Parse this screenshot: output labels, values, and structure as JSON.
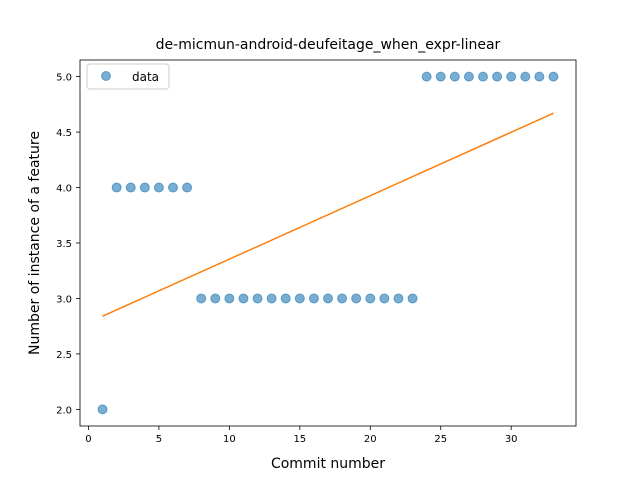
{
  "chart_data": {
    "type": "scatter",
    "title": "de-micmun-android-deufeitage_when_expr-linear",
    "xlabel": "Commit number",
    "ylabel": "Number of instance of a feature",
    "xlim": [
      -0.6,
      34.6
    ],
    "ylim": [
      1.85,
      5.15
    ],
    "xticks": [
      0,
      5,
      10,
      15,
      20,
      25,
      30
    ],
    "yticks": [
      2.0,
      2.5,
      3.0,
      3.5,
      4.0,
      4.5,
      5.0
    ],
    "xtick_labels": [
      "0",
      "5",
      "10",
      "15",
      "20",
      "25",
      "30"
    ],
    "ytick_labels": [
      "2.0",
      "2.5",
      "3.0",
      "3.5",
      "4.0",
      "4.5",
      "5.0"
    ],
    "grid": false,
    "legend": {
      "position": "top-left",
      "entries": [
        "data"
      ]
    },
    "series": [
      {
        "name": "data",
        "kind": "scatter",
        "color": "#1f77b4",
        "x": [
          1,
          2,
          3,
          4,
          5,
          6,
          7,
          8,
          9,
          10,
          11,
          12,
          13,
          14,
          15,
          16,
          17,
          18,
          19,
          20,
          21,
          22,
          23,
          24,
          25,
          26,
          27,
          28,
          29,
          30,
          31,
          32,
          33
        ],
        "y": [
          2,
          4,
          4,
          4,
          4,
          4,
          4,
          3,
          3,
          3,
          3,
          3,
          3,
          3,
          3,
          3,
          3,
          3,
          3,
          3,
          3,
          3,
          3,
          5,
          5,
          5,
          5,
          5,
          5,
          5,
          5,
          5,
          5
        ]
      },
      {
        "kind": "line",
        "color": "#ff7f0e",
        "x": [
          1,
          33
        ],
        "y": [
          2.84,
          4.67
        ]
      }
    ]
  }
}
